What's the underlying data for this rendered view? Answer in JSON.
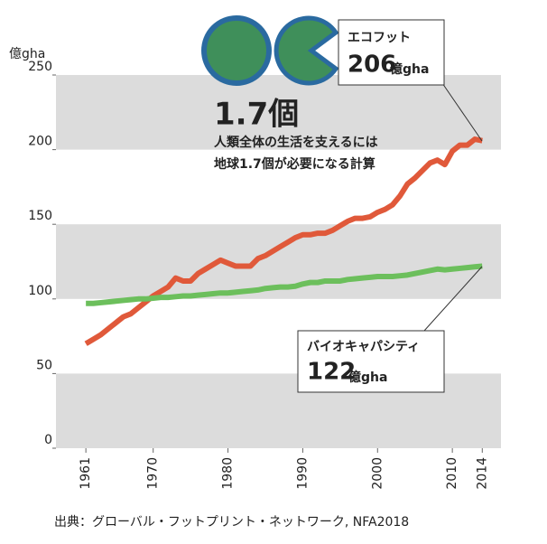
{
  "chart_data": {
    "type": "line",
    "y_unit": "億gha",
    "x": [
      1961,
      1962,
      1963,
      1964,
      1965,
      1966,
      1967,
      1968,
      1969,
      1970,
      1971,
      1972,
      1973,
      1974,
      1975,
      1976,
      1977,
      1978,
      1979,
      1980,
      1981,
      1982,
      1983,
      1984,
      1985,
      1986,
      1987,
      1988,
      1989,
      1990,
      1991,
      1992,
      1993,
      1994,
      1995,
      1996,
      1997,
      1998,
      1999,
      2000,
      2001,
      2002,
      2003,
      2004,
      2005,
      2006,
      2007,
      2008,
      2009,
      2010,
      2011,
      2012,
      2013,
      2014
    ],
    "series": [
      {
        "name": "エコフット",
        "color": "#e0593a",
        "values": [
          70,
          73,
          76,
          80,
          84,
          88,
          90,
          94,
          98,
          102,
          105,
          108,
          114,
          112,
          112,
          117,
          120,
          123,
          126,
          124,
          122,
          122,
          122,
          127,
          129,
          132,
          135,
          138,
          141,
          143,
          143,
          144,
          144,
          146,
          149,
          152,
          154,
          154,
          155,
          158,
          160,
          163,
          169,
          177,
          181,
          186,
          191,
          193,
          190,
          199,
          203,
          203,
          207,
          206
        ]
      },
      {
        "name": "バイオキャパシティ",
        "color": "#6cbf5c",
        "values": [
          97,
          97,
          97.5,
          98,
          98.5,
          99,
          99.5,
          100,
          100,
          100.5,
          101,
          101,
          101.5,
          102,
          102,
          102.5,
          103,
          103.5,
          104,
          104,
          104.5,
          105,
          105.5,
          106,
          107,
          107.5,
          108,
          108,
          108.5,
          110,
          111,
          111,
          112,
          112,
          112,
          113,
          113.5,
          114,
          114.5,
          115,
          115,
          115,
          115.5,
          116,
          117,
          118,
          119,
          120,
          119.5,
          120,
          120.5,
          121,
          121.5,
          122
        ]
      }
    ],
    "xlim": [
      1957,
      2016.5
    ],
    "xticks": [
      1961,
      1970,
      1980,
      1990,
      2000,
      2010,
      2014
    ],
    "ylim": [
      0,
      250
    ],
    "yticks": [
      0,
      50,
      100,
      150,
      200,
      250
    ],
    "bands": true,
    "annotations": {
      "eco_value": "206",
      "eco_unit": "億gha",
      "bio_value": "122",
      "bio_unit": "億gha",
      "earths": "1.7個",
      "earths_line1": "人類全体の生活を支えるには",
      "earths_line2": "地球1.7個が必要になる計算"
    },
    "source": "出典：グローバル・フットプリント・ネットワーク, NFA2018"
  }
}
